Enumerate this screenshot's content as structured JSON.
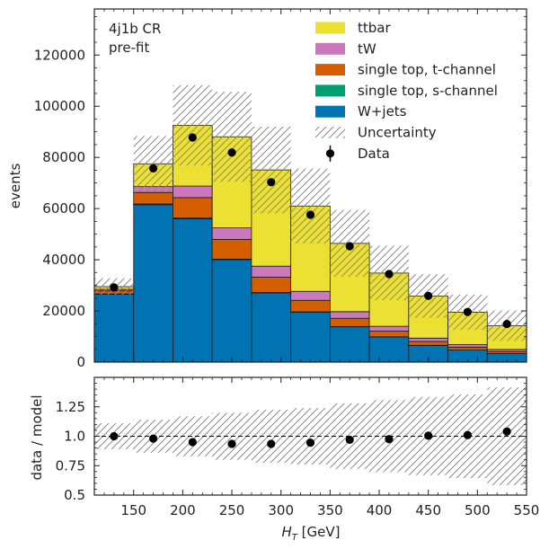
{
  "chart_data": [
    {
      "type": "bar",
      "stacked": true,
      "panel": "main",
      "annotations": [
        "4j1b CR",
        "pre-fit"
      ],
      "ylabel": "events",
      "xlim": [
        110,
        550
      ],
      "ylim": [
        0,
        138000
      ],
      "x_edges": [
        110,
        150,
        190,
        230,
        270,
        310,
        350,
        390,
        430,
        470,
        510,
        550
      ],
      "yticks": [
        0,
        20000,
        40000,
        60000,
        80000,
        100000,
        120000
      ],
      "legend_position": "top-right",
      "series": [
        {
          "name": "W+jets",
          "color": "#0173b2",
          "values": [
            26500,
            61500,
            56000,
            40000,
            27000,
            19500,
            13800,
            9800,
            6500,
            4700,
            3300
          ]
        },
        {
          "name": "single top, s-channel",
          "color": "#029e73",
          "values": [
            150,
            300,
            300,
            250,
            200,
            150,
            120,
            90,
            70,
            50,
            40
          ]
        },
        {
          "name": "single top, t-channel",
          "color": "#d55e00",
          "values": [
            1200,
            4500,
            8000,
            7700,
            6000,
            4500,
            3200,
            2200,
            1500,
            1100,
            800
          ]
        },
        {
          "name": "tW",
          "color": "#cc78bc",
          "values": [
            600,
            2300,
            4500,
            4500,
            4300,
            3500,
            2600,
            1900,
            1300,
            1000,
            800
          ]
        },
        {
          "name": "ttbar",
          "color": "#ece133",
          "values": [
            1050,
            8900,
            23700,
            35600,
            37600,
            33350,
            26680,
            20810,
            16430,
            12650,
            9260
          ]
        }
      ],
      "uncertainty": {
        "name": "Uncertainty",
        "rel": [
          0.11,
          0.14,
          0.17,
          0.2,
          0.225,
          0.24,
          0.28,
          0.305,
          0.33,
          0.355,
          0.415
        ]
      },
      "data": {
        "name": "Data",
        "x": [
          130,
          170,
          210,
          250,
          290,
          330,
          370,
          410,
          450,
          490,
          530
        ],
        "y": [
          29200,
          75700,
          87800,
          81900,
          70300,
          57600,
          45300,
          34400,
          25900,
          19600,
          14900
        ]
      },
      "legend_order": [
        "ttbar",
        "tW",
        "single top, t-channel",
        "single top, s-channel",
        "W+jets",
        "Uncertainty",
        "Data"
      ]
    },
    {
      "type": "scatter",
      "panel": "ratio",
      "xlabel": "H_T [GeV]",
      "xlabel_main": "H",
      "xlabel_sub": "T",
      "xlabel_unit": " [GeV]",
      "ylabel": "data / model",
      "xlim": [
        110,
        550
      ],
      "ylim": [
        0.5,
        1.5
      ],
      "xticks": [
        150,
        200,
        250,
        300,
        350,
        400,
        450,
        500,
        550
      ],
      "yticks": [
        0.5,
        0.75,
        1.0,
        1.25
      ],
      "ytick_labels": [
        "0.5",
        "0.75",
        "1.0",
        "1.25"
      ],
      "reference_line": 1.0,
      "x": [
        130,
        170,
        210,
        250,
        290,
        330,
        370,
        410,
        450,
        490,
        530
      ],
      "y": [
        1.0,
        0.98,
        0.95,
        0.935,
        0.935,
        0.945,
        0.97,
        0.975,
        1.005,
        1.01,
        1.04
      ]
    }
  ]
}
